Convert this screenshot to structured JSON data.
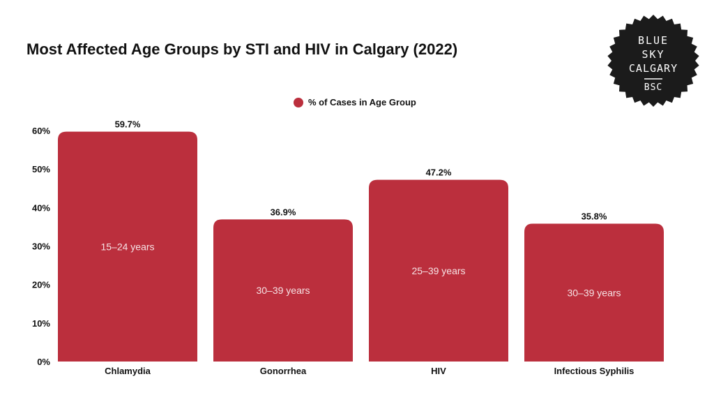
{
  "chart_data": {
    "type": "bar",
    "title": "Most Affected Age Groups by STI and HIV in Calgary (2022)",
    "xlabel": "",
    "ylabel": "",
    "categories": [
      "Chlamydia",
      "Gonorrhea",
      "HIV",
      "Infectious Syphilis"
    ],
    "series": [
      {
        "name": "% of Cases in Age Group",
        "values": [
          59.7,
          36.9,
          47.2,
          35.8
        ]
      }
    ],
    "data_labels": [
      "59.7%",
      "36.9%",
      "47.2%",
      "35.8%"
    ],
    "bar_annotations": [
      "15–24 years",
      "30–39 years",
      "25–39 years",
      "30–39 years"
    ],
    "ylim": [
      0,
      60
    ],
    "yticks": [
      0,
      10,
      20,
      30,
      40,
      50,
      60
    ],
    "ytick_labels": [
      "0%",
      "10%",
      "20%",
      "30%",
      "40%",
      "50%",
      "60%"
    ],
    "legend_position": "top-center",
    "grid": false
  },
  "logo": {
    "lines": [
      "BLUE",
      "SKY",
      "CALGARY",
      "BSC"
    ]
  },
  "colors": {
    "bar": "#bb2f3d",
    "badge": "#1b1b1b",
    "badge_text": "#ffffff"
  }
}
